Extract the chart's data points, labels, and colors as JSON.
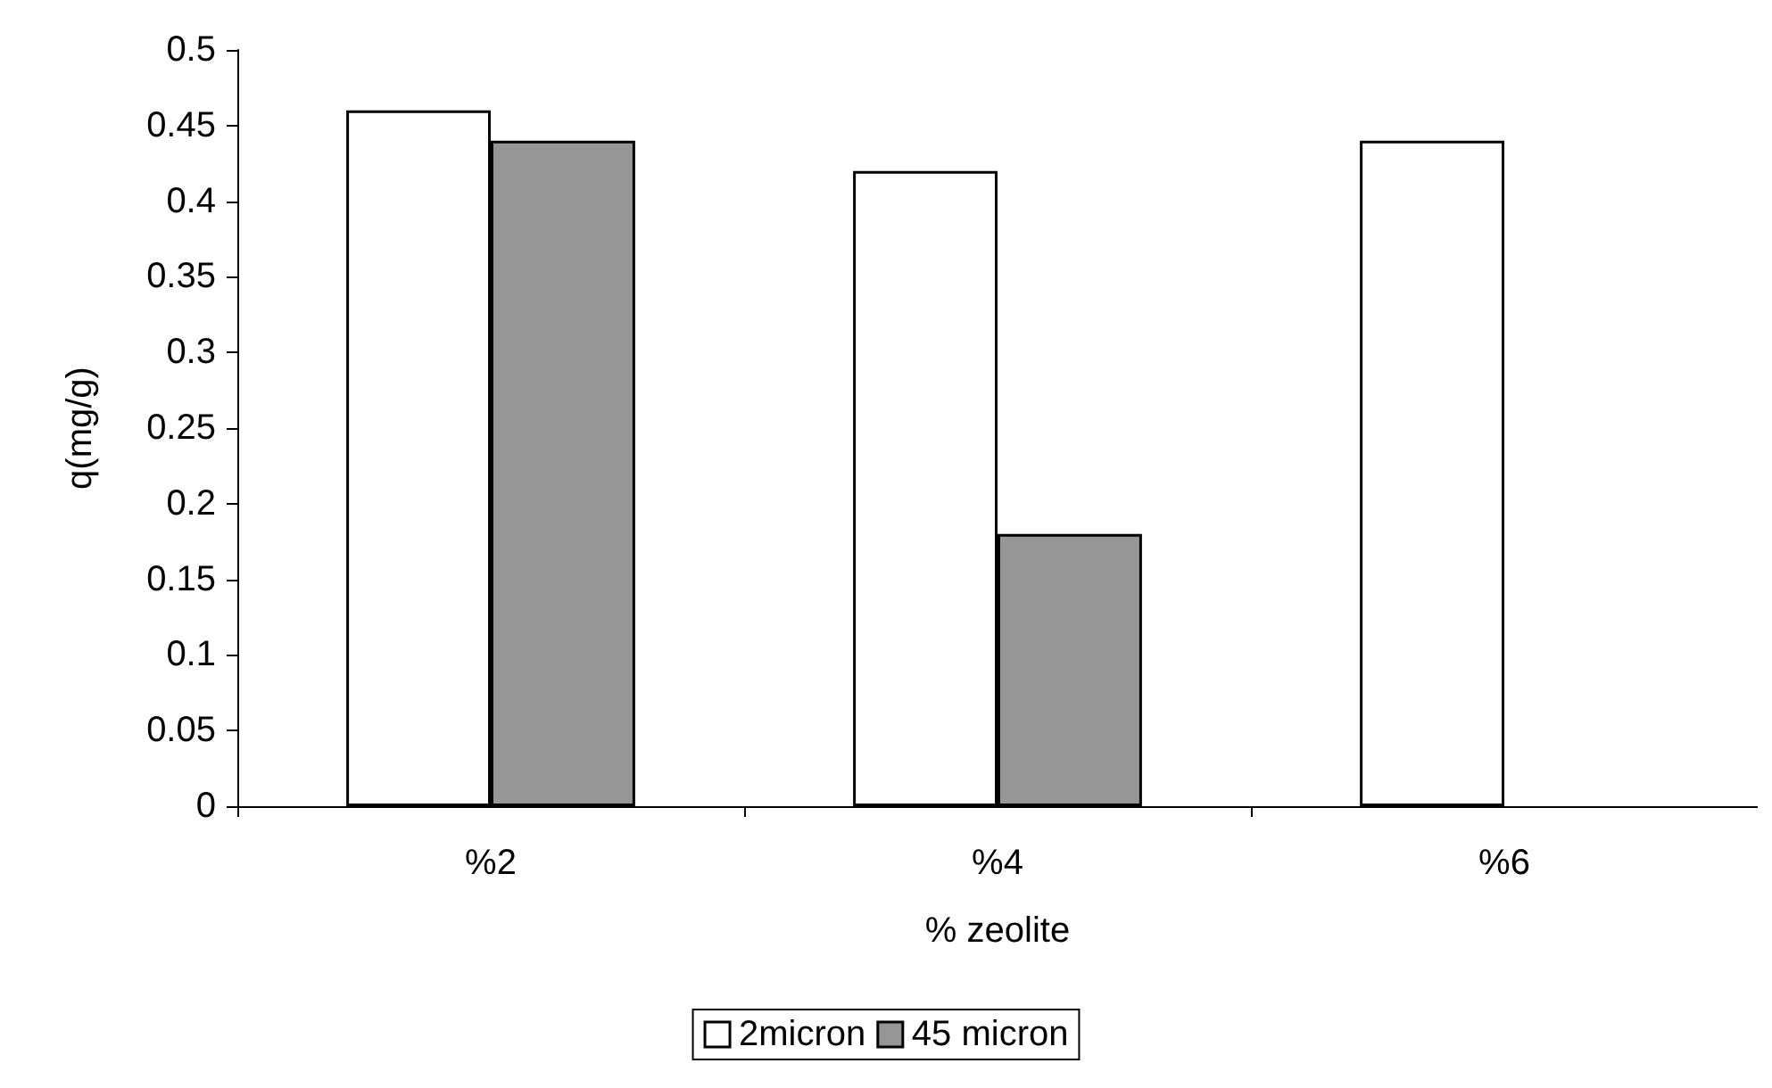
{
  "chart_data": {
    "type": "bar",
    "xlabel": "% zeolite",
    "ylabel": "q(mg/g)",
    "categories": [
      "%2",
      "%4",
      "%6"
    ],
    "series": [
      {
        "name": "2micron",
        "color": "#ffffff",
        "values": [
          0.46,
          0.42,
          0.44
        ]
      },
      {
        "name": "45 micron",
        "color": "#969696",
        "values": [
          0.44,
          0.18,
          null
        ]
      }
    ],
    "ylim": [
      0,
      0.5
    ],
    "yticks": [
      0,
      0.05,
      0.1,
      0.15,
      0.2,
      0.25,
      0.3,
      0.35,
      0.4,
      0.45,
      0.5
    ],
    "grid": false,
    "legend": "bottom"
  }
}
